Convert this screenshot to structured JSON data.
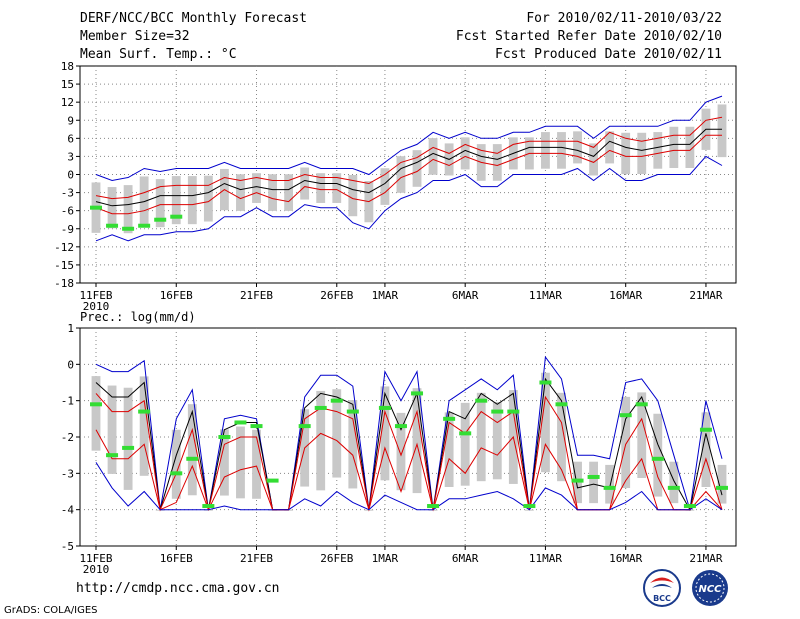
{
  "header": {
    "title": "DERF/NCC/BCC Monthly Forecast",
    "member_size": "Member Size=32",
    "variable": "Mean Surf. Temp.: °C",
    "forecast_period": "For 2010/02/11-2010/03/22",
    "start_date": "Fcst Started Refer Date 2010/02/10",
    "produced_date": "Fcst Produced Date 2010/02/11"
  },
  "footer": {
    "url": "http://cmdp.ncc.cma.gov.cn",
    "credit": "GrADS: COLA/IGES",
    "logo_bcc": "BCC",
    "logo_ncc": "NCC"
  },
  "colors": {
    "band": "#c8c8c8",
    "obs": "#33dd33",
    "envelope": "#0000cc",
    "mean": "#000000",
    "spread": "#dd0000",
    "grid": "#888888"
  },
  "chart_data": [
    {
      "type": "line",
      "title": "Mean Surf. Temp.: °C",
      "ylim": [
        -18,
        18
      ],
      "yticks": [
        -18,
        -15,
        -12,
        -9,
        -6,
        -3,
        0,
        3,
        6,
        9,
        12,
        15,
        18
      ],
      "x_tick_labels": [
        "11FEB",
        "16FEB",
        "21FEB",
        "26FEB",
        "1MAR",
        "6MAR",
        "11MAR",
        "16MAR",
        "21MAR"
      ],
      "x_tick_days": [
        1,
        6,
        11,
        16,
        19,
        24,
        29,
        34,
        39
      ],
      "year_label": "2010",
      "days": 40,
      "series": [
        {
          "name": "ensemble max",
          "values": [
            0,
            -1,
            -0.5,
            1,
            0.5,
            1,
            1,
            1,
            2,
            1,
            1,
            1,
            1,
            2,
            1,
            1,
            1,
            0,
            2,
            4,
            5,
            7,
            6,
            7,
            6,
            6,
            7,
            7,
            8,
            8,
            8,
            6,
            8,
            8,
            8,
            8,
            9,
            9,
            12,
            13
          ]
        },
        {
          "name": "mean + spread",
          "values": [
            -3.5,
            -4,
            -3.8,
            -3,
            -2,
            -1.8,
            -1.8,
            -1.8,
            -0.5,
            -1,
            -0.5,
            -1,
            -1,
            0,
            -0.5,
            -0.5,
            -1,
            -1.5,
            0,
            2,
            2.8,
            4.5,
            3.5,
            5,
            4,
            3.5,
            5,
            5.5,
            5.5,
            5.5,
            5.5,
            4.5,
            7,
            6,
            5.5,
            6,
            6.5,
            6.5,
            9,
            9.5
          ]
        },
        {
          "name": "ensemble mean",
          "values": [
            -4.5,
            -5.2,
            -5,
            -4.5,
            -3.5,
            -3.5,
            -3.5,
            -3,
            -1.5,
            -2.5,
            -2,
            -2.5,
            -2.5,
            -1,
            -1.5,
            -1.5,
            -2.5,
            -3,
            -1.5,
            1,
            2,
            3.5,
            2.5,
            4,
            3,
            2.5,
            3.5,
            4.5,
            4.5,
            4.5,
            4,
            3,
            5.5,
            4.5,
            4,
            4.5,
            5,
            5,
            7.5,
            7.5
          ]
        },
        {
          "name": "mean - spread",
          "values": [
            -5.5,
            -6.5,
            -6.5,
            -6,
            -5,
            -5,
            -5,
            -4.5,
            -2.5,
            -4,
            -3,
            -4,
            -4.5,
            -2,
            -2.5,
            -2.5,
            -4,
            -4.5,
            -3,
            -0.5,
            0.5,
            2.5,
            1.5,
            3,
            2,
            1.5,
            2.5,
            3.5,
            3.5,
            3.5,
            3,
            2,
            4,
            3,
            3,
            3.5,
            4,
            4,
            6.5,
            6.5
          ]
        },
        {
          "name": "ensemble min",
          "values": [
            -11,
            -10,
            -11,
            -10,
            -10,
            -9.5,
            -9.5,
            -9,
            -7,
            -7,
            -5.5,
            -7,
            -7,
            -5,
            -5.5,
            -5.5,
            -8,
            -9,
            -6,
            -4,
            -3,
            -1,
            -1,
            0,
            -2,
            -2,
            0,
            0,
            0,
            0,
            1,
            -1,
            1,
            -1,
            -1,
            0,
            0,
            0,
            3,
            1.5
          ]
        },
        {
          "name": "observed",
          "values": [
            -5.5,
            -8.5,
            -9,
            -8.5,
            -7.5,
            -7,
            null,
            null,
            null,
            null,
            null,
            null,
            null,
            null,
            null,
            null,
            null,
            null,
            null,
            null,
            null,
            null,
            null,
            null,
            null,
            null,
            null,
            null,
            null,
            null,
            null,
            null,
            null,
            null,
            null,
            null,
            null,
            null,
            null,
            null
          ]
        }
      ]
    },
    {
      "type": "line",
      "title": "Prec.: log(mm/d)",
      "ylim": [
        -5,
        1
      ],
      "yticks": [
        -5,
        -4,
        -3,
        -2,
        -1,
        0,
        1
      ],
      "x_tick_labels": [
        "11FEB",
        "16FEB",
        "21FEB",
        "26FEB",
        "1MAR",
        "6MAR",
        "11MAR",
        "16MAR",
        "21MAR"
      ],
      "x_tick_days": [
        1,
        6,
        11,
        16,
        19,
        24,
        29,
        34,
        39
      ],
      "year_label": "2010",
      "days": 40,
      "series": [
        {
          "name": "ensemble max",
          "values": [
            0,
            -0.2,
            -0.2,
            0.1,
            -4,
            -1.5,
            -0.7,
            -4,
            -1.5,
            -1.4,
            -1.5,
            -4,
            -4,
            -0.9,
            -0.3,
            -0.3,
            -0.6,
            -4,
            -0.2,
            -1,
            -0.2,
            -4,
            -1,
            -0.7,
            -0.4,
            -0.7,
            -0.3,
            -4,
            0.2,
            -0.4,
            -2.5,
            -2.5,
            -2.6,
            -0.5,
            -0.4,
            -1,
            -2.5,
            -4,
            -1,
            -2.6
          ]
        },
        {
          "name": "ensemble mean",
          "values": [
            -0.5,
            -0.9,
            -0.9,
            -0.5,
            -4,
            -2.5,
            -1.3,
            -4,
            -1.8,
            -1.6,
            -1.6,
            -4,
            -4,
            -1.2,
            -0.8,
            -0.9,
            -1.1,
            -4,
            -0.8,
            -1.8,
            -0.8,
            -4,
            -1.3,
            -1.5,
            -0.8,
            -1.1,
            -0.8,
            -4,
            -0.4,
            -1,
            -3.4,
            -3.3,
            -3.4,
            -1.5,
            -0.9,
            -2.2,
            -3.2,
            -4,
            -1.9,
            -3.6
          ]
        },
        {
          "name": "mean + spread",
          "values": [
            -0.8,
            -1.3,
            -1.3,
            -1,
            -4,
            -3,
            -1.8,
            -4,
            -2.2,
            -2,
            -2,
            -4,
            -4,
            -1.5,
            -1.2,
            -1.3,
            -1.5,
            -4,
            -1.3,
            -2.5,
            -1.3,
            -4,
            -1.6,
            -1.9,
            -1.3,
            -1.6,
            -1.3,
            -4,
            -0.9,
            -1.6,
            -4,
            -4,
            -4,
            -2.2,
            -1.5,
            -3.1,
            -4,
            -4,
            -2.6,
            -4
          ]
        },
        {
          "name": "mean - spread",
          "values": [
            -1.8,
            -2.6,
            -2.6,
            -2.2,
            -4,
            -3.8,
            -2.8,
            -4,
            -3.1,
            -2.9,
            -2.8,
            -4,
            -4,
            -2.3,
            -1.9,
            -2.1,
            -2.5,
            -4,
            -2.3,
            -3.5,
            -2.2,
            -4,
            -2.6,
            -3,
            -2.3,
            -2.5,
            -2,
            -4,
            -2.2,
            -2.9,
            -4,
            -4,
            -4,
            -3.2,
            -2.6,
            -4,
            -4,
            -4,
            -3.5,
            -4
          ]
        },
        {
          "name": "ensemble min",
          "values": [
            -2.7,
            -3.4,
            -3.9,
            -3.5,
            -4,
            -4,
            -4,
            -4,
            -3.9,
            -4,
            -4,
            -4,
            -4,
            -3.7,
            -3.9,
            -3.5,
            -3.8,
            -4,
            -3.6,
            -3.8,
            -4,
            -4,
            -3.7,
            -3.7,
            -3.6,
            -3.5,
            -3.7,
            -4,
            -3.4,
            -3.6,
            -4,
            -4,
            -4,
            -3.8,
            -3.5,
            -4,
            -4,
            -4,
            -3.7,
            -4
          ]
        },
        {
          "name": "observed",
          "values": [
            -1.1,
            -2.5,
            -2.3,
            -1.3,
            null,
            -3,
            -2.6,
            -3.9,
            -2,
            -1.6,
            -1.7,
            -3.2,
            null,
            -1.7,
            -1.2,
            -1,
            -1.3,
            null,
            -1.2,
            -1.7,
            -0.8,
            -3.9,
            -1.5,
            -1.9,
            -1,
            -1.3,
            -1.3,
            -3.9,
            -0.5,
            -1.1,
            -3.2,
            -3.1,
            -3.4,
            -1.4,
            -1.1,
            -2.6,
            -3.4,
            -3.9,
            -1.8,
            -3.4
          ]
        }
      ]
    }
  ]
}
